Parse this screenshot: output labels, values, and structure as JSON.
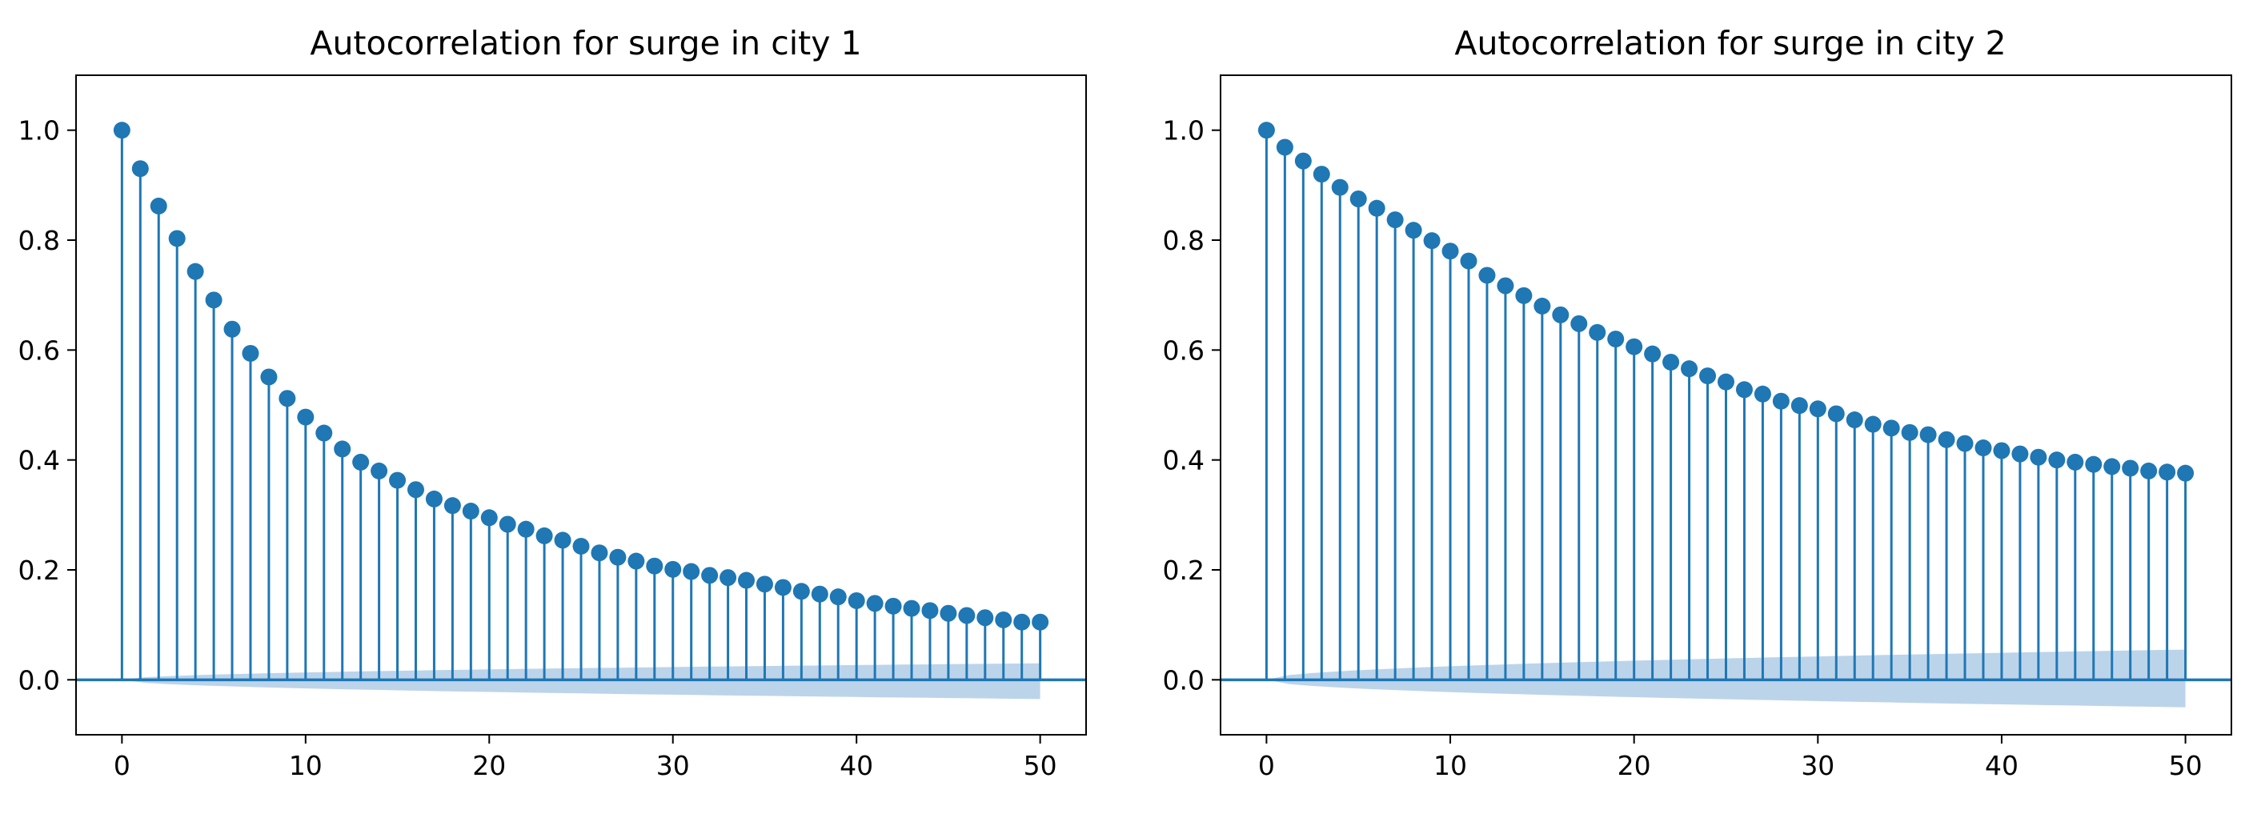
{
  "colors": {
    "stem": "#1f77b4",
    "marker": "#1f77b4",
    "baseline": "#1f77b4",
    "confidence_band": "#bcd4ea",
    "axes_frame": "#000000",
    "background": "#ffffff"
  },
  "chart_data": [
    {
      "type": "stem",
      "title": "Autocorrelation for surge in city 1",
      "xlabel": "",
      "ylabel": "",
      "xlim": [
        -2.5,
        52.5
      ],
      "ylim": [
        -0.1,
        1.1
      ],
      "xticks": [
        0,
        10,
        20,
        30,
        40,
        50
      ],
      "xtick_labels": [
        "0",
        "10",
        "20",
        "30",
        "40",
        "50"
      ],
      "yticks": [
        0.0,
        0.2,
        0.4,
        0.6,
        0.8,
        1.0
      ],
      "ytick_labels": [
        "0.0",
        "0.2",
        "0.4",
        "0.6",
        "0.8",
        "1.0"
      ],
      "grid": false,
      "baseline_y": 0.0,
      "x": [
        0,
        1,
        2,
        3,
        4,
        5,
        6,
        7,
        8,
        9,
        10,
        11,
        12,
        13,
        14,
        15,
        16,
        17,
        18,
        19,
        20,
        21,
        22,
        23,
        24,
        25,
        26,
        27,
        28,
        29,
        30,
        31,
        32,
        33,
        34,
        35,
        36,
        37,
        38,
        39,
        40,
        41,
        42,
        43,
        44,
        45,
        46,
        47,
        48,
        49,
        50
      ],
      "values": [
        1.0,
        0.93,
        0.862,
        0.803,
        0.743,
        0.691,
        0.638,
        0.594,
        0.551,
        0.512,
        0.478,
        0.449,
        0.42,
        0.396,
        0.38,
        0.363,
        0.346,
        0.329,
        0.317,
        0.307,
        0.295,
        0.283,
        0.274,
        0.262,
        0.254,
        0.243,
        0.231,
        0.223,
        0.216,
        0.207,
        0.201,
        0.197,
        0.19,
        0.186,
        0.181,
        0.174,
        0.168,
        0.161,
        0.156,
        0.151,
        0.144,
        0.139,
        0.134,
        0.13,
        0.126,
        0.121,
        0.117,
        0.113,
        0.109,
        0.105,
        0.105
      ],
      "confidence_band": {
        "x_range": [
          0,
          50
        ],
        "upper_start": 0.0,
        "upper_end": 0.03,
        "lower_start": 0.0,
        "lower_end": -0.035
      }
    },
    {
      "type": "stem",
      "title": "Autocorrelation for surge in city 2",
      "xlabel": "",
      "ylabel": "",
      "xlim": [
        -2.5,
        52.5
      ],
      "ylim": [
        -0.1,
        1.1
      ],
      "xticks": [
        0,
        10,
        20,
        30,
        40,
        50
      ],
      "xtick_labels": [
        "0",
        "10",
        "20",
        "30",
        "40",
        "50"
      ],
      "yticks": [
        0.0,
        0.2,
        0.4,
        0.6,
        0.8,
        1.0
      ],
      "ytick_labels": [
        "0.0",
        "0.2",
        "0.4",
        "0.6",
        "0.8",
        "1.0"
      ],
      "grid": false,
      "baseline_y": 0.0,
      "x": [
        0,
        1,
        2,
        3,
        4,
        5,
        6,
        7,
        8,
        9,
        10,
        11,
        12,
        13,
        14,
        15,
        16,
        17,
        18,
        19,
        20,
        21,
        22,
        23,
        24,
        25,
        26,
        27,
        28,
        29,
        30,
        31,
        32,
        33,
        34,
        35,
        36,
        37,
        38,
        39,
        40,
        41,
        42,
        43,
        44,
        45,
        46,
        47,
        48,
        49,
        50
      ],
      "values": [
        1.0,
        0.969,
        0.944,
        0.92,
        0.896,
        0.875,
        0.858,
        0.837,
        0.818,
        0.799,
        0.78,
        0.762,
        0.736,
        0.717,
        0.699,
        0.68,
        0.664,
        0.648,
        0.632,
        0.62,
        0.606,
        0.593,
        0.578,
        0.566,
        0.553,
        0.542,
        0.528,
        0.52,
        0.507,
        0.499,
        0.493,
        0.484,
        0.473,
        0.465,
        0.458,
        0.45,
        0.446,
        0.437,
        0.43,
        0.422,
        0.417,
        0.411,
        0.405,
        0.4,
        0.396,
        0.392,
        0.388,
        0.385,
        0.38,
        0.378,
        0.376
      ],
      "confidence_band": {
        "x_range": [
          0,
          50
        ],
        "upper_start": 0.0,
        "upper_end": 0.055,
        "lower_start": 0.0,
        "lower_end": -0.05
      }
    }
  ]
}
